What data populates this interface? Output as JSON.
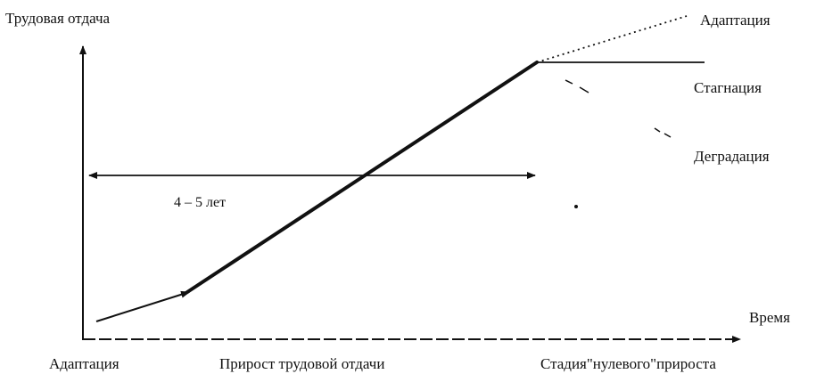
{
  "y_axis_label": "Трудовая отдача",
  "x_axis_label": "Время",
  "outcomes": {
    "adaptation": "Адаптация",
    "stagnation": "Стагнация",
    "degradation": "Деградация"
  },
  "duration_label": "4 – 5 лет",
  "stages": {
    "adaptation": "Адаптация",
    "growth": "Прирост трудовой отдачи",
    "zero_growth": "Стадия\"нулевого\"прироста"
  }
}
